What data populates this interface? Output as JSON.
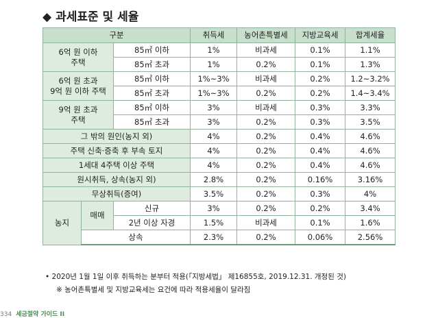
{
  "heading": {
    "bullet": "◆",
    "title": "과세표준 및 세율"
  },
  "table": {
    "headers": [
      "구분",
      "취득세",
      "농어촌특별세",
      "지방교육세",
      "합계세율"
    ],
    "rows": [
      {
        "cat": "6억 원 이하\n주택",
        "sub": "85㎡ 이하",
        "v": [
          "1%",
          "비과세",
          "0.1%",
          "1.1%"
        ]
      },
      {
        "sub": "85㎡ 초과",
        "v": [
          "1%",
          "0.2%",
          "0.1%",
          "1.3%"
        ]
      },
      {
        "cat": "6억 원 초과\n9억 원 이하 주택",
        "sub": "85㎡ 이하",
        "v": [
          "1%~3%",
          "비과세",
          "0.2%",
          "1.2~3.2%"
        ]
      },
      {
        "sub": "85㎡ 초과",
        "v": [
          "1%~3%",
          "0.2%",
          "0.2%",
          "1.4~3.4%"
        ]
      },
      {
        "cat": "9억 원 초과\n주택",
        "sub": "85㎡ 이하",
        "v": [
          "3%",
          "비과세",
          "0.3%",
          "3.3%"
        ]
      },
      {
        "sub": "85㎡ 초과",
        "v": [
          "3%",
          "0.2%",
          "0.3%",
          "3.5%"
        ]
      },
      {
        "full": "그 밖의 원인(농지 외)",
        "v": [
          "4%",
          "0.2%",
          "0.4%",
          "4.6%"
        ]
      },
      {
        "full": "주택 신축·증축 후 부속 토지",
        "v": [
          "4%",
          "0.2%",
          "0.4%",
          "4.6%"
        ]
      },
      {
        "full": "1세대 4주택 이상 주택",
        "v": [
          "4%",
          "0.2%",
          "0.4%",
          "4.6%"
        ]
      },
      {
        "full": "원시취득, 상속(농지 외)",
        "v": [
          "2.8%",
          "0.2%",
          "0.16%",
          "3.16%"
        ]
      },
      {
        "full": "무상취득(증여)",
        "v": [
          "3.5%",
          "0.2%",
          "0.3%",
          "4%"
        ]
      },
      {
        "cat": "농지",
        "mid": "매매",
        "sub": "신규",
        "v": [
          "3%",
          "0.2%",
          "0.2%",
          "3.4%"
        ]
      },
      {
        "sub": "2년 이상 자경",
        "v": [
          "1.5%",
          "비과세",
          "0.1%",
          "1.6%"
        ]
      },
      {
        "sub": "상속",
        "v": [
          "2.3%",
          "0.2%",
          "0.06%",
          "2.56%"
        ]
      }
    ]
  },
  "notes": [
    "• 2020년 1월 1일 이후 취득하는 분부터 적용(「지방세법」 제16855호, 2019.12.31. 개정된 것)",
    "※ 농어촌특별세 및 지방교육세는 요건에 따라 적용세율이 달라짐"
  ],
  "footer": {
    "page": "334",
    "series": "세금절약 가이드 II"
  }
}
